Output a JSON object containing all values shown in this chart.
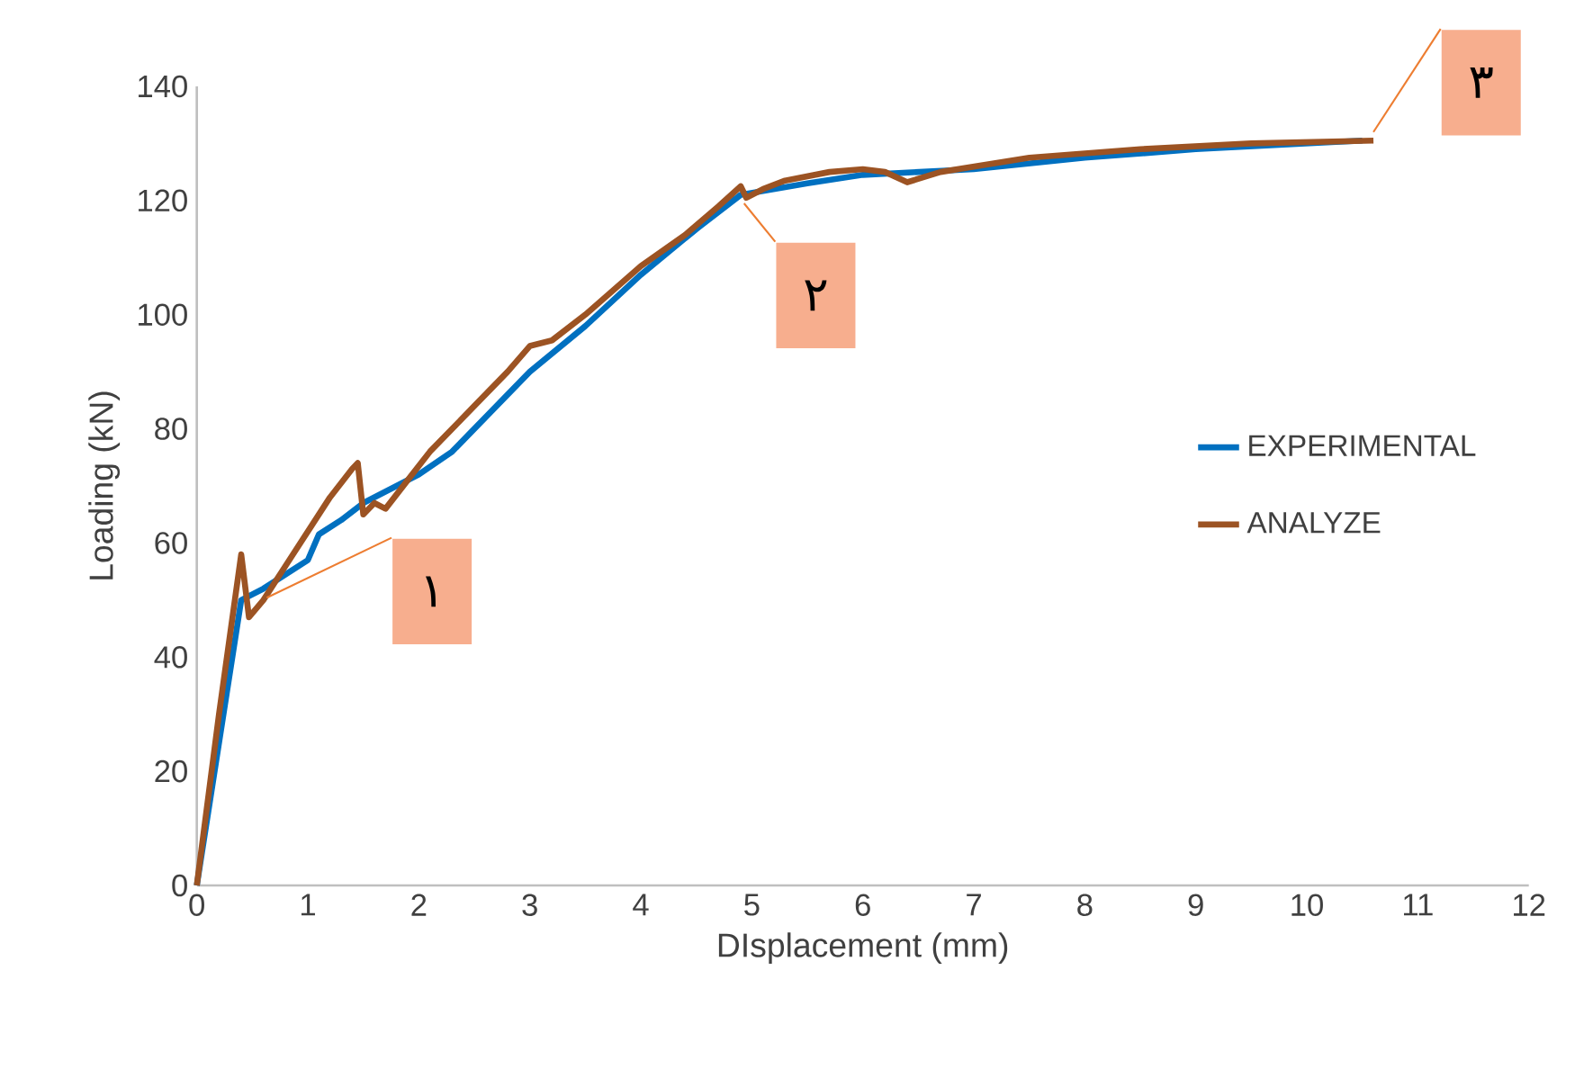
{
  "chart_data": {
    "type": "line",
    "xlabel": "DIsplacement (mm)",
    "ylabel": "Loading (kN)",
    "xlim": [
      0,
      12
    ],
    "xticks": [
      0,
      1,
      2,
      3,
      4,
      5,
      6,
      7,
      8,
      9,
      10,
      11,
      12
    ],
    "ylim": [
      0,
      140
    ],
    "yticks": [
      0,
      20,
      40,
      60,
      80,
      100,
      120,
      140
    ],
    "grid": false,
    "legend": "right",
    "marker": "none",
    "line_style": "solid",
    "series": [
      {
        "name": "EXPERIMENTAL",
        "color": "#0070c0",
        "x": [
          0,
          0.4,
          0.6,
          1.0,
          1.1,
          1.3,
          1.5,
          2.0,
          2.3,
          2.6,
          3.0,
          3.5,
          4.0,
          4.5,
          4.9,
          5.5,
          6.0,
          7.0,
          8.0,
          9.0,
          10.5
        ],
        "values": [
          0,
          50,
          52,
          57,
          61.5,
          64,
          67,
          72,
          76,
          82,
          90,
          98,
          107,
          115,
          121,
          123,
          124.5,
          125.5,
          127.5,
          129,
          130.5
        ]
      },
      {
        "name": "ANALYZE",
        "color": "#9c5323",
        "x": [
          0,
          0.2,
          0.4,
          0.47,
          0.6,
          0.8,
          1.0,
          1.2,
          1.4,
          1.45,
          1.5,
          1.6,
          1.7,
          1.9,
          2.1,
          2.5,
          2.8,
          3.0,
          3.2,
          3.5,
          4.0,
          4.4,
          4.7,
          4.9,
          4.95,
          5.1,
          5.3,
          5.7,
          6.0,
          6.2,
          6.4,
          6.7,
          7.5,
          8.5,
          9.5,
          10.6
        ],
        "values": [
          0,
          30,
          58,
          47,
          50,
          56,
          62,
          68,
          73,
          74,
          65,
          67,
          66,
          71,
          76,
          84,
          90,
          94.5,
          95.5,
          100,
          108.5,
          114,
          119,
          122.5,
          120.5,
          122,
          123.5,
          125,
          125.5,
          125,
          123.2,
          125,
          127.5,
          129,
          130,
          130.5
        ]
      }
    ],
    "annotations": [
      {
        "text": "١",
        "x": 0.63,
        "y": 50.4
      },
      {
        "text": "٢",
        "x": 4.93,
        "y": 119.5
      },
      {
        "text": "٣",
        "x": 10.6,
        "y": 132
      }
    ]
  }
}
